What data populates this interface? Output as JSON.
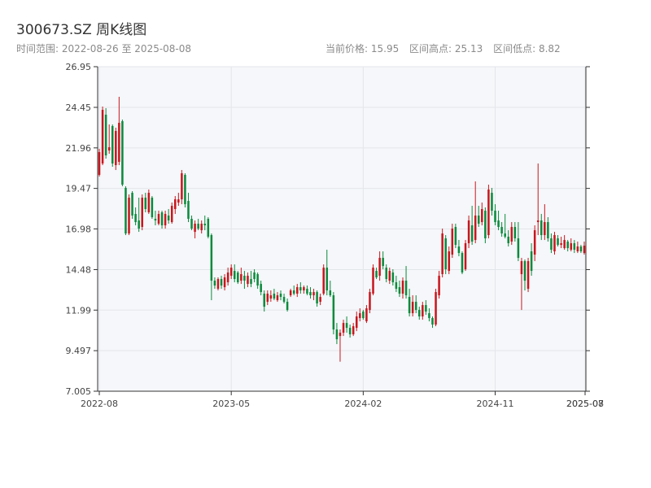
{
  "header": {
    "title": "300673.SZ 周K线图",
    "range_label": "时间范围:",
    "start_date": "2022-08-26",
    "to_label": "至",
    "end_date": "2025-08-08",
    "current_price": "当前价格: 15.95",
    "range_high": "区间高点: 25.13",
    "range_low": "区间低点: 8.82"
  },
  "colors": {
    "up": "#c8161d",
    "down": "#0a8a3c",
    "plot_bg": "#f5f7fa",
    "grid": "#e3e6ea",
    "axis": "#333333"
  },
  "chart_data": {
    "type": "candlestick",
    "title": "300673.SZ 周K线图",
    "ylim": [
      7.005,
      26.95
    ],
    "y_ticks": [
      7.005,
      9.497,
      11.99,
      14.48,
      16.98,
      19.47,
      21.96,
      24.45,
      26.95
    ],
    "x_ticks": [
      {
        "label": "2022-08",
        "i": 0
      },
      {
        "label": "2023-05",
        "i": 40
      },
      {
        "label": "2024-02",
        "i": 80
      },
      {
        "label": "2024-11",
        "i": 120
      },
      {
        "label": "2025-07",
        "i": 157
      },
      {
        "label": "2025-08",
        "i": 157
      }
    ],
    "candles": [
      {
        "o": 20.3,
        "h": 21.9,
        "l": 20.2,
        "c": 21.7
      },
      {
        "o": 21.0,
        "h": 24.5,
        "l": 20.9,
        "c": 24.3
      },
      {
        "o": 24.0,
        "h": 24.4,
        "l": 21.3,
        "c": 21.5
      },
      {
        "o": 21.8,
        "h": 23.4,
        "l": 21.6,
        "c": 22.0
      },
      {
        "o": 23.3,
        "h": 23.4,
        "l": 20.8,
        "c": 21.0
      },
      {
        "o": 20.9,
        "h": 23.2,
        "l": 20.6,
        "c": 23.0
      },
      {
        "o": 21.1,
        "h": 25.1,
        "l": 20.9,
        "c": 23.5
      },
      {
        "o": 23.6,
        "h": 23.7,
        "l": 19.6,
        "c": 19.7
      },
      {
        "o": 19.5,
        "h": 19.6,
        "l": 16.6,
        "c": 16.7
      },
      {
        "o": 16.7,
        "h": 19.1,
        "l": 16.6,
        "c": 18.9
      },
      {
        "o": 19.2,
        "h": 19.3,
        "l": 17.6,
        "c": 17.8
      },
      {
        "o": 17.9,
        "h": 18.3,
        "l": 17.2,
        "c": 17.4
      },
      {
        "o": 17.5,
        "h": 18.9,
        "l": 16.8,
        "c": 17.0
      },
      {
        "o": 17.1,
        "h": 19.1,
        "l": 16.9,
        "c": 18.9
      },
      {
        "o": 18.9,
        "h": 19.2,
        "l": 18.0,
        "c": 18.2
      },
      {
        "o": 18.0,
        "h": 19.4,
        "l": 17.9,
        "c": 19.2
      },
      {
        "o": 18.9,
        "h": 19.0,
        "l": 17.6,
        "c": 17.7
      },
      {
        "o": 17.6,
        "h": 18.1,
        "l": 17.2,
        "c": 17.5
      },
      {
        "o": 17.3,
        "h": 18.1,
        "l": 17.2,
        "c": 17.9
      },
      {
        "o": 18.0,
        "h": 18.1,
        "l": 17.0,
        "c": 17.2
      },
      {
        "o": 17.2,
        "h": 18.1,
        "l": 17.0,
        "c": 17.9
      },
      {
        "o": 17.8,
        "h": 18.2,
        "l": 17.3,
        "c": 17.5
      },
      {
        "o": 17.4,
        "h": 18.6,
        "l": 17.3,
        "c": 18.4
      },
      {
        "o": 18.2,
        "h": 19.0,
        "l": 17.9,
        "c": 18.8
      },
      {
        "o": 18.6,
        "h": 19.2,
        "l": 18.4,
        "c": 18.8
      },
      {
        "o": 18.8,
        "h": 20.6,
        "l": 18.5,
        "c": 20.4
      },
      {
        "o": 20.3,
        "h": 20.4,
        "l": 18.3,
        "c": 18.5
      },
      {
        "o": 18.7,
        "h": 19.2,
        "l": 17.4,
        "c": 17.6
      },
      {
        "o": 17.6,
        "h": 17.8,
        "l": 16.9,
        "c": 17.0
      },
      {
        "o": 16.8,
        "h": 17.5,
        "l": 16.4,
        "c": 17.3
      },
      {
        "o": 17.3,
        "h": 17.6,
        "l": 16.9,
        "c": 17.0
      },
      {
        "o": 16.9,
        "h": 17.5,
        "l": 16.7,
        "c": 17.3
      },
      {
        "o": 17.3,
        "h": 17.8,
        "l": 16.9,
        "c": 17.2
      },
      {
        "o": 17.6,
        "h": 17.7,
        "l": 16.4,
        "c": 16.5
      },
      {
        "o": 16.6,
        "h": 16.7,
        "l": 12.6,
        "c": 13.8
      },
      {
        "o": 13.8,
        "h": 14.0,
        "l": 13.3,
        "c": 13.5
      },
      {
        "o": 13.3,
        "h": 14.0,
        "l": 13.2,
        "c": 13.9
      },
      {
        "o": 13.9,
        "h": 14.1,
        "l": 13.3,
        "c": 13.5
      },
      {
        "o": 13.4,
        "h": 14.2,
        "l": 13.2,
        "c": 14.0
      },
      {
        "o": 13.7,
        "h": 14.6,
        "l": 13.5,
        "c": 14.3
      },
      {
        "o": 14.1,
        "h": 14.8,
        "l": 13.9,
        "c": 14.6
      },
      {
        "o": 14.4,
        "h": 14.8,
        "l": 13.7,
        "c": 13.9
      },
      {
        "o": 14.3,
        "h": 14.4,
        "l": 13.6,
        "c": 13.7
      },
      {
        "o": 13.8,
        "h": 14.6,
        "l": 13.6,
        "c": 14.2
      },
      {
        "o": 14.1,
        "h": 14.4,
        "l": 13.3,
        "c": 13.8
      },
      {
        "o": 13.6,
        "h": 14.3,
        "l": 13.4,
        "c": 14.1
      },
      {
        "o": 13.9,
        "h": 14.4,
        "l": 13.4,
        "c": 13.6
      },
      {
        "o": 14.3,
        "h": 14.5,
        "l": 13.7,
        "c": 13.9
      },
      {
        "o": 14.2,
        "h": 14.3,
        "l": 13.3,
        "c": 13.5
      },
      {
        "o": 13.6,
        "h": 13.8,
        "l": 12.9,
        "c": 13.1
      },
      {
        "o": 13.0,
        "h": 13.2,
        "l": 11.9,
        "c": 12.2
      },
      {
        "o": 12.5,
        "h": 13.2,
        "l": 12.3,
        "c": 13.0
      },
      {
        "o": 12.7,
        "h": 13.2,
        "l": 12.5,
        "c": 12.9
      },
      {
        "o": 13.0,
        "h": 13.3,
        "l": 12.6,
        "c": 12.7
      },
      {
        "o": 12.6,
        "h": 13.1,
        "l": 12.5,
        "c": 12.9
      },
      {
        "o": 13.0,
        "h": 13.2,
        "l": 12.6,
        "c": 12.8
      },
      {
        "o": 12.8,
        "h": 13.0,
        "l": 12.4,
        "c": 12.5
      },
      {
        "o": 12.5,
        "h": 12.7,
        "l": 11.9,
        "c": 12.0
      },
      {
        "o": 12.9,
        "h": 13.3,
        "l": 12.8,
        "c": 13.2
      },
      {
        "o": 13.2,
        "h": 13.5,
        "l": 12.9,
        "c": 13.0
      },
      {
        "o": 13.0,
        "h": 13.6,
        "l": 12.8,
        "c": 13.4
      },
      {
        "o": 13.4,
        "h": 13.7,
        "l": 13.0,
        "c": 13.2
      },
      {
        "o": 13.2,
        "h": 13.5,
        "l": 13.0,
        "c": 13.4
      },
      {
        "o": 13.3,
        "h": 13.5,
        "l": 12.9,
        "c": 13.0
      },
      {
        "o": 13.1,
        "h": 13.4,
        "l": 12.7,
        "c": 12.9
      },
      {
        "o": 12.9,
        "h": 13.3,
        "l": 12.6,
        "c": 13.1
      },
      {
        "o": 13.1,
        "h": 13.2,
        "l": 12.2,
        "c": 12.4
      },
      {
        "o": 12.5,
        "h": 13.0,
        "l": 12.3,
        "c": 12.8
      },
      {
        "o": 13.0,
        "h": 14.8,
        "l": 12.9,
        "c": 14.6
      },
      {
        "o": 14.6,
        "h": 15.7,
        "l": 12.9,
        "c": 13.2
      },
      {
        "o": 13.2,
        "h": 13.8,
        "l": 12.8,
        "c": 12.9
      },
      {
        "o": 12.9,
        "h": 13.1,
        "l": 10.5,
        "c": 10.8
      },
      {
        "o": 10.8,
        "h": 11.2,
        "l": 9.9,
        "c": 10.2
      },
      {
        "o": 10.4,
        "h": 10.8,
        "l": 8.82,
        "c": 10.6
      },
      {
        "o": 10.6,
        "h": 11.4,
        "l": 10.4,
        "c": 11.2
      },
      {
        "o": 11.2,
        "h": 11.6,
        "l": 10.6,
        "c": 10.9
      },
      {
        "o": 10.9,
        "h": 11.1,
        "l": 10.3,
        "c": 10.5
      },
      {
        "o": 10.5,
        "h": 11.2,
        "l": 10.4,
        "c": 11.0
      },
      {
        "o": 10.9,
        "h": 11.9,
        "l": 10.7,
        "c": 11.6
      },
      {
        "o": 11.5,
        "h": 12.1,
        "l": 11.3,
        "c": 11.8
      },
      {
        "o": 11.9,
        "h": 12.0,
        "l": 11.4,
        "c": 11.5
      },
      {
        "o": 11.3,
        "h": 12.3,
        "l": 11.2,
        "c": 12.1
      },
      {
        "o": 12.0,
        "h": 13.3,
        "l": 11.8,
        "c": 13.1
      },
      {
        "o": 13.0,
        "h": 14.8,
        "l": 12.9,
        "c": 14.6
      },
      {
        "o": 14.4,
        "h": 14.6,
        "l": 13.9,
        "c": 14.0
      },
      {
        "o": 14.1,
        "h": 15.6,
        "l": 13.8,
        "c": 15.2
      },
      {
        "o": 15.2,
        "h": 15.6,
        "l": 14.5,
        "c": 14.7
      },
      {
        "o": 14.6,
        "h": 14.8,
        "l": 13.7,
        "c": 13.9
      },
      {
        "o": 13.8,
        "h": 14.6,
        "l": 13.6,
        "c": 14.4
      },
      {
        "o": 14.3,
        "h": 14.5,
        "l": 13.5,
        "c": 13.7
      },
      {
        "o": 13.7,
        "h": 14.1,
        "l": 13.1,
        "c": 13.3
      },
      {
        "o": 13.4,
        "h": 13.8,
        "l": 12.8,
        "c": 13.0
      },
      {
        "o": 13.0,
        "h": 14.0,
        "l": 12.7,
        "c": 13.8
      },
      {
        "o": 13.8,
        "h": 14.7,
        "l": 12.7,
        "c": 12.9
      },
      {
        "o": 12.8,
        "h": 13.3,
        "l": 11.6,
        "c": 11.8
      },
      {
        "o": 11.8,
        "h": 12.9,
        "l": 11.6,
        "c": 12.5
      },
      {
        "o": 12.5,
        "h": 12.9,
        "l": 11.8,
        "c": 12.0
      },
      {
        "o": 12.0,
        "h": 12.2,
        "l": 11.4,
        "c": 11.6
      },
      {
        "o": 11.6,
        "h": 12.5,
        "l": 11.4,
        "c": 12.3
      },
      {
        "o": 12.3,
        "h": 12.6,
        "l": 11.7,
        "c": 11.9
      },
      {
        "o": 11.8,
        "h": 12.1,
        "l": 11.3,
        "c": 11.5
      },
      {
        "o": 11.5,
        "h": 11.6,
        "l": 10.9,
        "c": 11.1
      },
      {
        "o": 11.1,
        "h": 13.3,
        "l": 11.0,
        "c": 13.1
      },
      {
        "o": 12.9,
        "h": 14.4,
        "l": 12.7,
        "c": 14.1
      },
      {
        "o": 14.2,
        "h": 17.0,
        "l": 14.0,
        "c": 16.7
      },
      {
        "o": 16.4,
        "h": 16.6,
        "l": 14.2,
        "c": 14.5
      },
      {
        "o": 14.4,
        "h": 15.9,
        "l": 14.2,
        "c": 15.6
      },
      {
        "o": 15.4,
        "h": 17.3,
        "l": 15.2,
        "c": 17.0
      },
      {
        "o": 17.1,
        "h": 17.3,
        "l": 15.8,
        "c": 16.0
      },
      {
        "o": 15.9,
        "h": 16.3,
        "l": 15.3,
        "c": 15.5
      },
      {
        "o": 15.5,
        "h": 15.6,
        "l": 14.2,
        "c": 14.3
      },
      {
        "o": 14.5,
        "h": 16.3,
        "l": 14.4,
        "c": 16.1
      },
      {
        "o": 16.1,
        "h": 17.8,
        "l": 15.8,
        "c": 17.5
      },
      {
        "o": 17.2,
        "h": 18.4,
        "l": 16.0,
        "c": 16.2
      },
      {
        "o": 16.3,
        "h": 19.9,
        "l": 16.1,
        "c": 17.8
      },
      {
        "o": 17.8,
        "h": 18.4,
        "l": 17.1,
        "c": 17.3
      },
      {
        "o": 17.4,
        "h": 18.6,
        "l": 17.2,
        "c": 18.2
      },
      {
        "o": 18.1,
        "h": 18.3,
        "l": 16.1,
        "c": 16.4
      },
      {
        "o": 16.6,
        "h": 19.7,
        "l": 16.4,
        "c": 19.4
      },
      {
        "o": 19.2,
        "h": 19.5,
        "l": 17.8,
        "c": 18.1
      },
      {
        "o": 18.1,
        "h": 18.5,
        "l": 17.2,
        "c": 17.4
      },
      {
        "o": 17.5,
        "h": 18.1,
        "l": 16.9,
        "c": 17.1
      },
      {
        "o": 17.1,
        "h": 17.4,
        "l": 16.5,
        "c": 16.7
      },
      {
        "o": 16.7,
        "h": 17.9,
        "l": 16.4,
        "c": 16.5
      },
      {
        "o": 16.5,
        "h": 16.9,
        "l": 15.9,
        "c": 16.1
      },
      {
        "o": 16.2,
        "h": 17.4,
        "l": 16.0,
        "c": 17.1
      },
      {
        "o": 17.1,
        "h": 17.4,
        "l": 16.2,
        "c": 16.4
      },
      {
        "o": 16.4,
        "h": 17.4,
        "l": 15.0,
        "c": 15.2
      },
      {
        "o": 14.2,
        "h": 15.2,
        "l": 12.0,
        "c": 15.0
      },
      {
        "o": 15.0,
        "h": 15.1,
        "l": 13.2,
        "c": 13.8
      },
      {
        "o": 13.3,
        "h": 15.2,
        "l": 13.1,
        "c": 15.0
      },
      {
        "o": 15.6,
        "h": 16.1,
        "l": 14.1,
        "c": 14.4
      },
      {
        "o": 15.4,
        "h": 17.2,
        "l": 15.0,
        "c": 16.9
      },
      {
        "o": 17.4,
        "h": 21.0,
        "l": 16.6,
        "c": 17.5
      },
      {
        "o": 17.5,
        "h": 17.9,
        "l": 16.3,
        "c": 16.6
      },
      {
        "o": 16.6,
        "h": 18.5,
        "l": 16.3,
        "c": 17.4
      },
      {
        "o": 17.4,
        "h": 17.7,
        "l": 16.2,
        "c": 16.4
      },
      {
        "o": 16.4,
        "h": 16.7,
        "l": 15.5,
        "c": 15.7
      },
      {
        "o": 15.6,
        "h": 16.8,
        "l": 15.4,
        "c": 16.6
      },
      {
        "o": 16.4,
        "h": 16.6,
        "l": 15.9,
        "c": 16.0
      },
      {
        "o": 16.0,
        "h": 16.5,
        "l": 15.8,
        "c": 16.1
      },
      {
        "o": 15.8,
        "h": 16.6,
        "l": 15.7,
        "c": 16.3
      },
      {
        "o": 16.2,
        "h": 16.3,
        "l": 15.6,
        "c": 15.8
      },
      {
        "o": 15.7,
        "h": 16.4,
        "l": 15.6,
        "c": 16.1
      },
      {
        "o": 16.1,
        "h": 16.3,
        "l": 15.5,
        "c": 15.7
      },
      {
        "o": 15.6,
        "h": 16.2,
        "l": 15.5,
        "c": 15.9
      },
      {
        "o": 15.9,
        "h": 16.0,
        "l": 15.5,
        "c": 15.6
      },
      {
        "o": 15.5,
        "h": 16.2,
        "l": 15.4,
        "c": 15.95
      }
    ]
  }
}
